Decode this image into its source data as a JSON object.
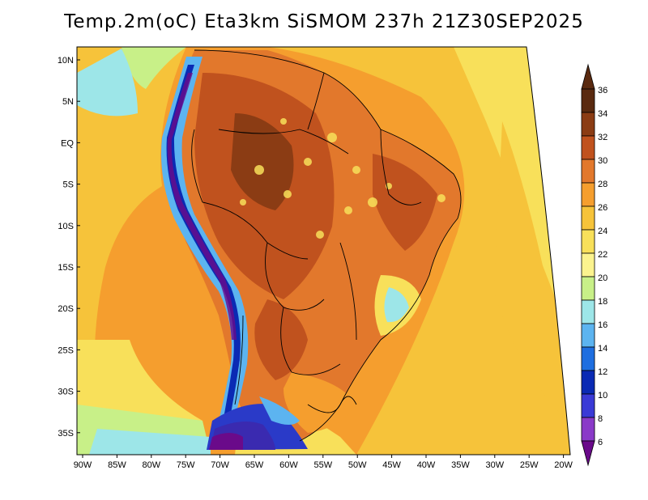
{
  "title": "Temp.2m(oC) Eta3km SiSMOM 237h 21Z30SEP2025",
  "lat_labels": [
    "10N",
    "5N",
    "EQ",
    "5S",
    "10S",
    "15S",
    "20S",
    "25S",
    "30S",
    "35S"
  ],
  "lon_labels": [
    "90W",
    "85W",
    "80W",
    "75W",
    "70W",
    "65W",
    "60W",
    "55W",
    "50W",
    "45W",
    "40W",
    "35W",
    "30W",
    "25W",
    "20W"
  ],
  "colorbar": {
    "labels": [
      "36",
      "34",
      "32",
      "30",
      "28",
      "26",
      "24",
      "22",
      "20",
      "18",
      "16",
      "14",
      "12",
      "10",
      "8",
      "6"
    ],
    "colors": [
      "#5a2a10",
      "#8b3c14",
      "#c0521e",
      "#e2782c",
      "#f59e2e",
      "#f6c33a",
      "#f8e05a",
      "#fbf38e",
      "#c8f088",
      "#9de6e8",
      "#5cb4f0",
      "#1e6ee0",
      "#0a2ab4",
      "#3a3ad6",
      "#8a3ac8",
      "#6a0a8a"
    ]
  },
  "colors": {
    "ocean_warm": "#f6c33a",
    "ocean_mid": "#f59e2e",
    "land_hot": "#c0521e",
    "land_mid": "#e2782c",
    "andes_cold": "#0a2ab4",
    "andes_mid": "#5cb4f0",
    "south_cold": "#2a3ac8",
    "pacific_cool": "#9de6e8"
  }
}
